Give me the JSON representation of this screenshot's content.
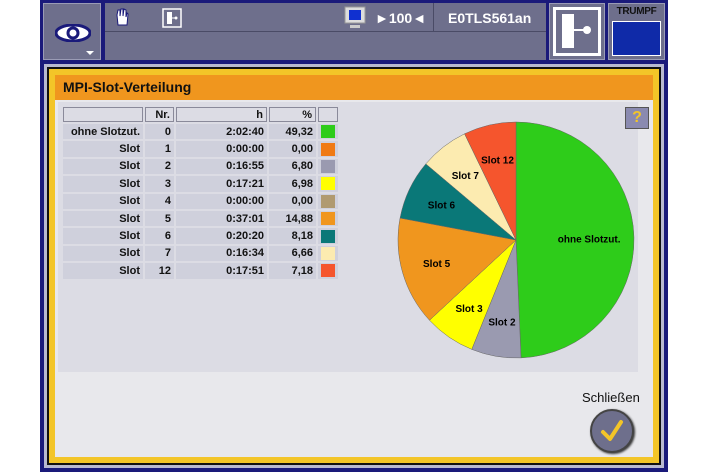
{
  "toolbar": {
    "zoom": "►100◄",
    "machine": "E0TLS561an",
    "logo": "TRUMPF"
  },
  "dialog": {
    "title": "MPI-Slot-Verteilung",
    "close_label": "Schließen",
    "help": "?"
  },
  "table": {
    "headers": [
      "",
      "Nr.",
      "h",
      "%",
      ""
    ],
    "rows": [
      {
        "name": "ohne Slotzut.",
        "nr": "0",
        "h": "2:02:40",
        "pct": "49,32",
        "color": "#2ecc1a"
      },
      {
        "name": "Slot",
        "nr": "1",
        "h": "0:00:00",
        "pct": "0,00",
        "color": "#f07a14"
      },
      {
        "name": "Slot",
        "nr": "2",
        "h": "0:16:55",
        "pct": "6,80",
        "color": "#9a9ab0"
      },
      {
        "name": "Slot",
        "nr": "3",
        "h": "0:17:21",
        "pct": "6,98",
        "color": "#ffff00"
      },
      {
        "name": "Slot",
        "nr": "4",
        "h": "0:00:00",
        "pct": "0,00",
        "color": "#b09a70"
      },
      {
        "name": "Slot",
        "nr": "5",
        "h": "0:37:01",
        "pct": "14,88",
        "color": "#f0961e"
      },
      {
        "name": "Slot",
        "nr": "6",
        "h": "0:20:20",
        "pct": "8,18",
        "color": "#0a7878"
      },
      {
        "name": "Slot",
        "nr": "7",
        "h": "0:16:34",
        "pct": "6,66",
        "color": "#fcebb0"
      },
      {
        "name": "Slot",
        "nr": "12",
        "h": "0:17:51",
        "pct": "7,18",
        "color": "#f5552d"
      }
    ]
  },
  "pie_labels": {
    "0": "ohne Slotzut.",
    "2": "Slot 2",
    "3": "Slot 3",
    "5": "Slot 5",
    "6": "Slot 6",
    "7": "Slot 7",
    "8": "Slot 12"
  }
}
